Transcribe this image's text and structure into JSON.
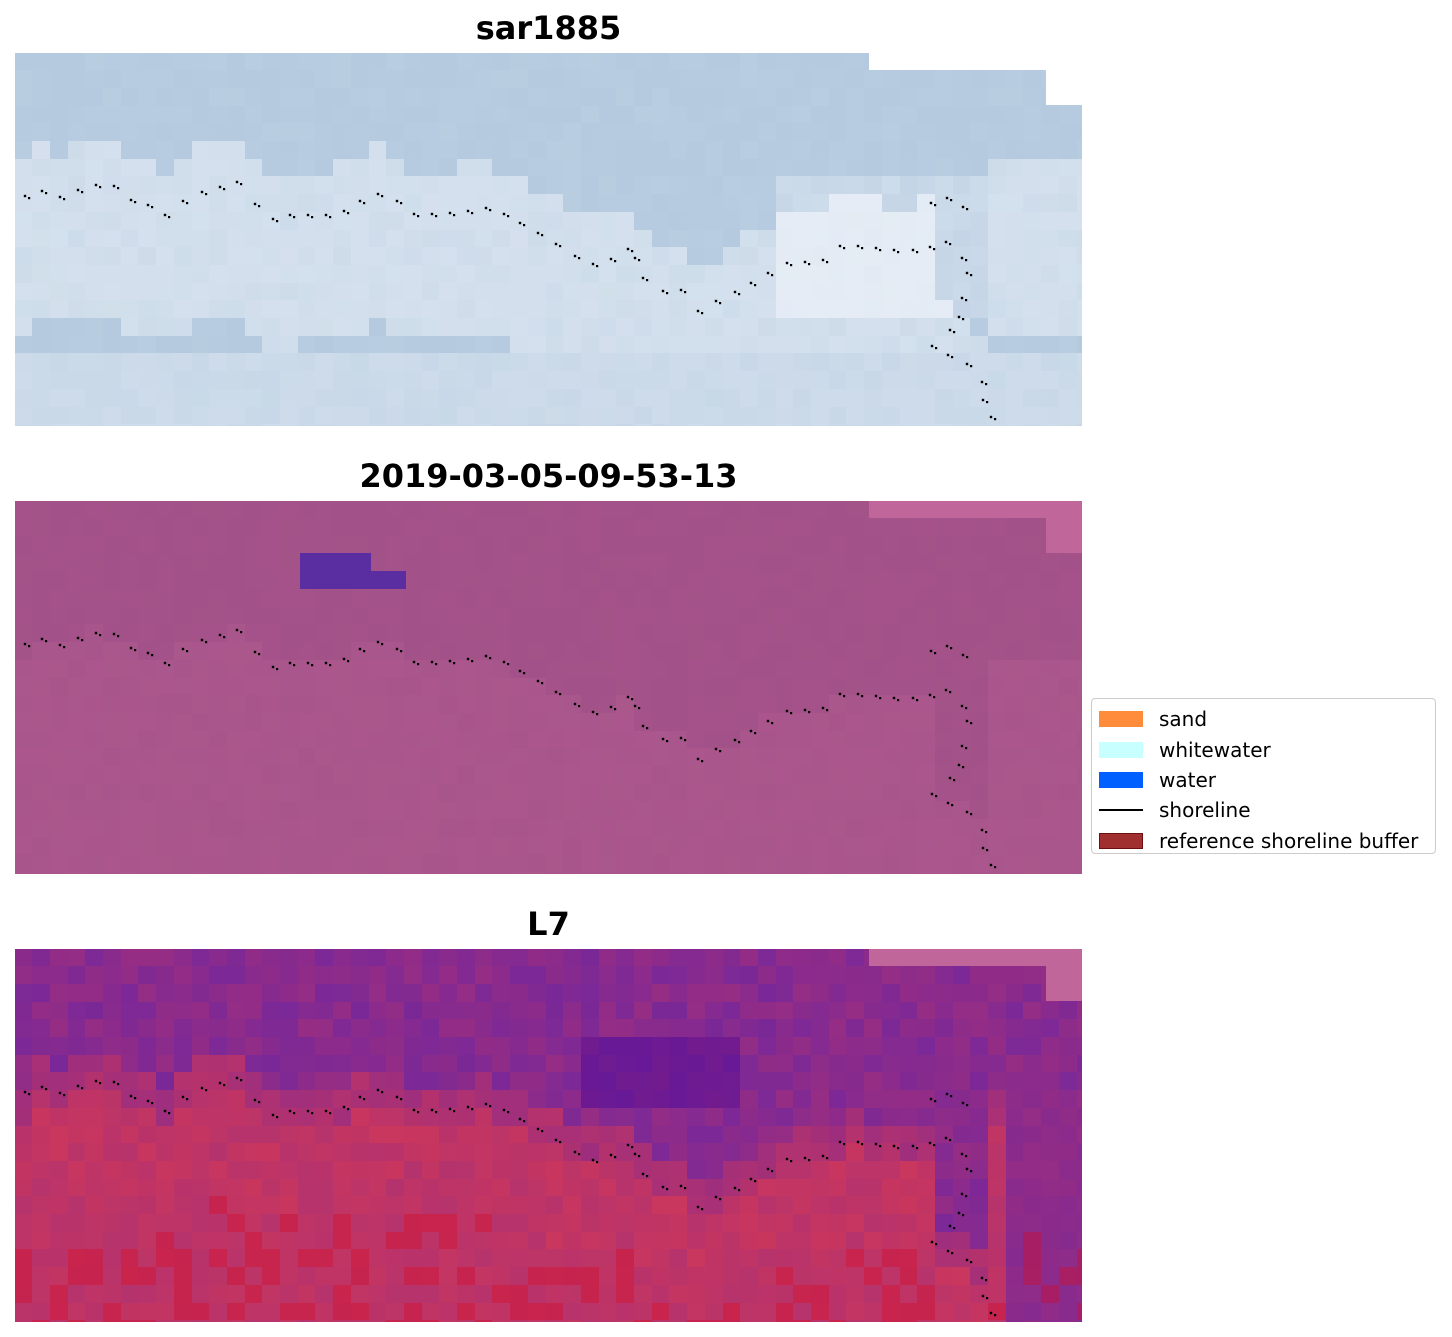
{
  "figure": {
    "panels": [
      {
        "id": "rgb",
        "title": "sar1885",
        "style": "sar"
      },
      {
        "id": "classified",
        "title": "2019-03-05-09-53-13",
        "style": "classified"
      },
      {
        "id": "index",
        "title": "L7",
        "style": "index"
      }
    ]
  },
  "legend": {
    "items": [
      {
        "label": "sand",
        "kind": "patch",
        "color": "#ff8c3a",
        "edge": "#ff8c3a"
      },
      {
        "label": "whitewater",
        "kind": "patch",
        "color": "#c8ffff",
        "edge": "#c8ffff"
      },
      {
        "label": "water",
        "kind": "patch",
        "color": "#0060ff",
        "edge": "#0060ff"
      },
      {
        "label": "shoreline",
        "kind": "line",
        "color": "#000000"
      },
      {
        "label": "reference shoreline buffer",
        "kind": "patch",
        "color": "#a03030",
        "edge": "#6e1010"
      }
    ]
  },
  "colors": {
    "sar_base": "#b8cde0",
    "classified_base": "#a35289",
    "classified_water_patch": "#5a2ea0",
    "index_land": "#c9365e",
    "index_water": "#7a2898",
    "nodata_strip": "#c0669a",
    "shoreline_dots": "#000000"
  }
}
